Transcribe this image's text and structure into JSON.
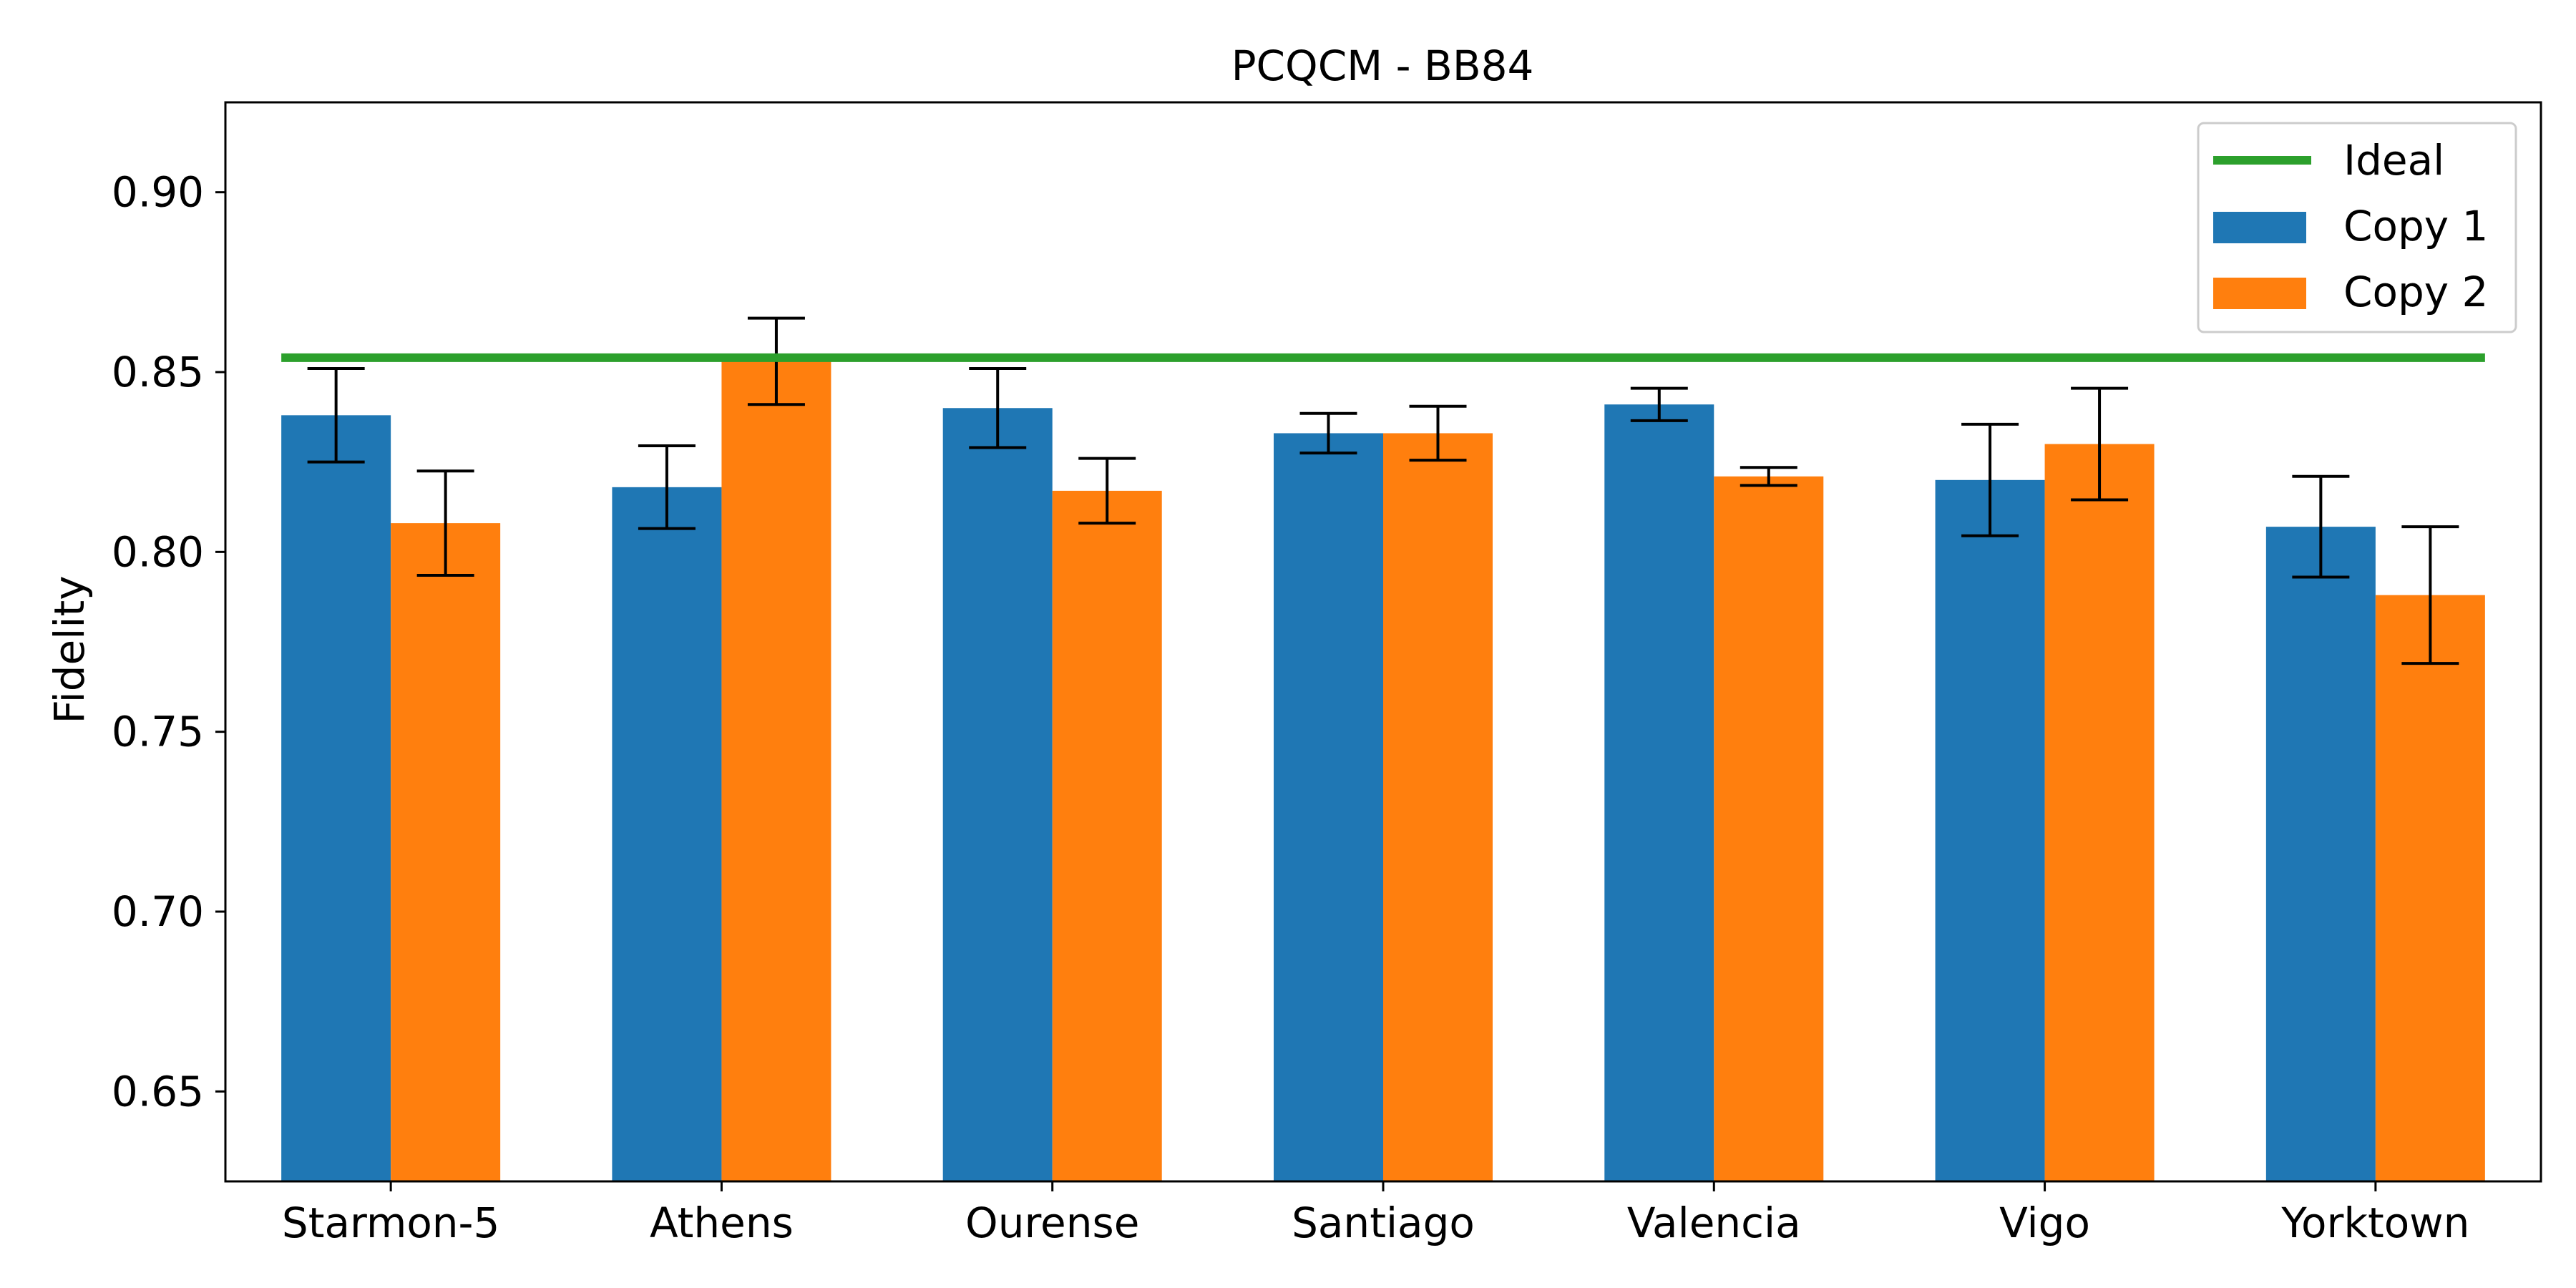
{
  "chart_data": {
    "type": "bar",
    "title": "PCQCM - BB84",
    "xlabel": "",
    "ylabel": "Fidelity",
    "categories": [
      "Starmon-5",
      "Athens",
      "Ourense",
      "Santiago",
      "Valencia",
      "Vigo",
      "Yorktown"
    ],
    "series": [
      {
        "name": "Copy 1",
        "color": "#1f77b4",
        "values": [
          0.838,
          0.818,
          0.84,
          0.833,
          0.841,
          0.82,
          0.807
        ],
        "errors": [
          0.013,
          0.0115,
          0.011,
          0.0055,
          0.0045,
          0.0155,
          0.014
        ]
      },
      {
        "name": "Copy 2",
        "color": "#ff7f0e",
        "values": [
          0.808,
          0.853,
          0.817,
          0.833,
          0.821,
          0.83,
          0.788
        ],
        "errors": [
          0.0145,
          0.012,
          0.009,
          0.0075,
          0.0025,
          0.0155,
          0.019
        ]
      }
    ],
    "reference_line": {
      "name": "Ideal",
      "value": 0.854,
      "color": "#2ca02c"
    },
    "ylim": [
      0.625,
      0.925
    ],
    "yticks": [
      "0.65",
      "0.70",
      "0.75",
      "0.80",
      "0.85",
      "0.90"
    ],
    "legend_position": "top-right",
    "grid": false
  }
}
